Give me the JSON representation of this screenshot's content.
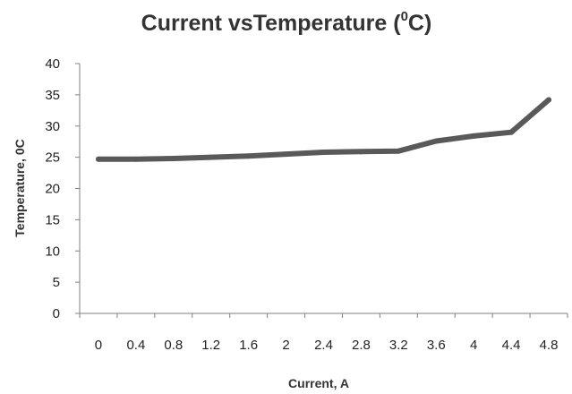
{
  "chart_data": {
    "type": "line",
    "title": "Current vsTemperature (",
    "title_superscript": "0",
    "title_suffix": "C)",
    "xlabel": "Current, A",
    "ylabel": "Temperature, 0C",
    "ylim": [
      0,
      40
    ],
    "yticks": [
      "0",
      "5",
      "10",
      "15",
      "20",
      "25",
      "30",
      "35",
      "40"
    ],
    "categories": [
      "0",
      "0.4",
      "0.8",
      "1.2",
      "1.6",
      "2",
      "2.4",
      "2.8",
      "3.2",
      "3.6",
      "4",
      "4.4",
      "4.8"
    ],
    "series": [
      {
        "values": [
          24.7,
          24.7,
          24.8,
          25.0,
          25.2,
          25.5,
          25.8,
          25.9,
          26.0,
          27.6,
          28.4,
          29.0,
          34.2
        ]
      }
    ],
    "grid": false,
    "legend": "none",
    "line_color": "#595959",
    "axis_color": "#808080"
  }
}
